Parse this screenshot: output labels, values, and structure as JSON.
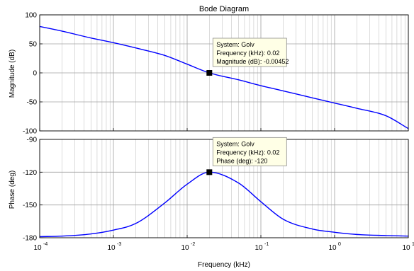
{
  "chart_data": {
    "type": "line",
    "title": "Bode Diagram",
    "xlabel": "Frequency (kHz)",
    "x_scale": "log",
    "xlim": [
      0.0001,
      10
    ],
    "x_ticks": [
      "10^-4",
      "10^-3",
      "10^-2",
      "10^-1",
      "10^0",
      "10^1"
    ],
    "grid": true,
    "series_color": "#0000ff",
    "panels": [
      {
        "id": "magnitude",
        "ylabel": "Magnitude (dB)",
        "ylim": [
          -100,
          100
        ],
        "y_ticks": [
          "100",
          "50",
          "0",
          "-50",
          "-100"
        ],
        "series": [
          {
            "x": [
              0.0001,
              0.0002,
              0.0005,
              0.001,
              0.002,
              0.005,
              0.01,
              0.02,
              0.05,
              0.1,
              0.2,
              0.5,
              1,
              2,
              5,
              10
            ],
            "values": [
              80,
              72,
              60,
              52,
              43,
              30,
              15,
              0,
              -12,
              -22,
              -31,
              -43,
              -52,
              -61,
              -74,
              -96
            ]
          }
        ],
        "datatip": {
          "x": 0.02,
          "y": 0,
          "lines": [
            "System: Golv",
            "Frequency (kHz): 0.02",
            "Magnitude (dB): -0.00452"
          ]
        }
      },
      {
        "id": "phase",
        "ylabel": "Phase (deg)",
        "ylim": [
          -180,
          -90
        ],
        "y_ticks": [
          "-90",
          "-120",
          "-150",
          "-180"
        ],
        "series": [
          {
            "x": [
              0.0001,
              0.0002,
              0.0005,
              0.001,
              0.002,
              0.005,
              0.01,
              0.02,
              0.05,
              0.1,
              0.2,
              0.5,
              1,
              2,
              5,
              10
            ],
            "values": [
              -179,
              -178.5,
              -176.5,
              -173,
              -167,
              -148,
              -131,
              -120,
              -130,
              -147,
              -163,
              -172,
              -175,
              -177,
              -178,
              -178.5
            ]
          }
        ],
        "datatip": {
          "x": 0.02,
          "y": -120,
          "lines": [
            "System: Golv",
            "Frequency (kHz): 0.02",
            "Phase (deg): -120"
          ]
        }
      }
    ]
  }
}
